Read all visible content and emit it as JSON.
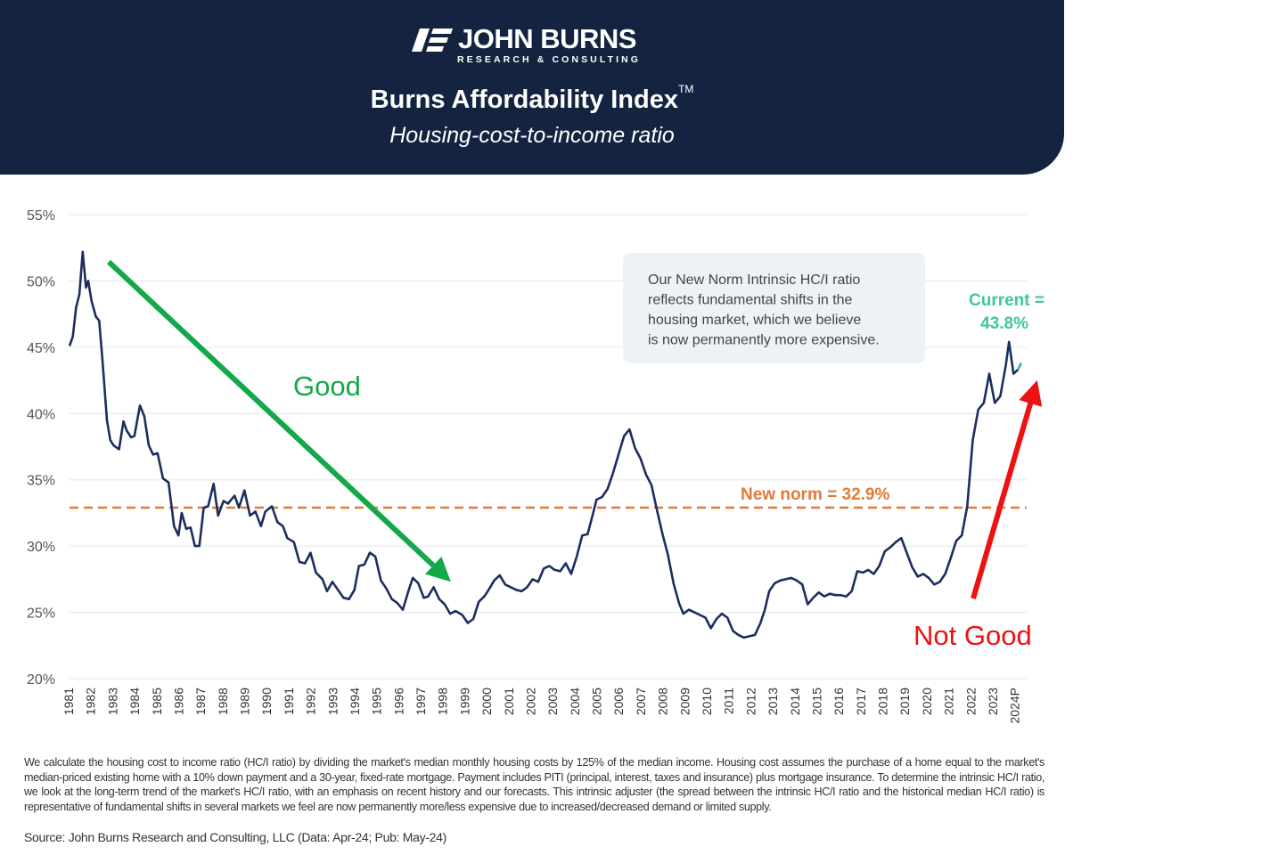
{
  "header": {
    "brand_name": "JOHN BURNS",
    "brand_sub": "RESEARCH & CONSULTING",
    "title": "Burns Affordability Index",
    "title_mark": "TM",
    "subtitle": "Housing-cost-to-income ratio"
  },
  "colors": {
    "header_bg": "#14233f",
    "series_line": "#1c2e5e",
    "new_norm": "#e07b39",
    "current_label": "#3fc79a",
    "good_arrow": "#13a84a",
    "not_good_arrow": "#ee1111",
    "callout_bg": "#eef1f6"
  },
  "chart_data": {
    "type": "line",
    "title": "Burns Affordability Index",
    "subtitle": "Housing-cost-to-income ratio",
    "ylim": [
      20,
      55
    ],
    "xlim": [
      1981,
      2024.5
    ],
    "y_ticks": [
      "20%",
      "25%",
      "30%",
      "35%",
      "40%",
      "45%",
      "50%",
      "55%"
    ],
    "x_ticks": [
      "1981",
      "1982",
      "1983",
      "1984",
      "1985",
      "1986",
      "1987",
      "1988",
      "1989",
      "1990",
      "1991",
      "1992",
      "1993",
      "1994",
      "1995",
      "1996",
      "1997",
      "1998",
      "1999",
      "2000",
      "2001",
      "2002",
      "2003",
      "2004",
      "2005",
      "2006",
      "2007",
      "2008",
      "2009",
      "2010",
      "2011",
      "2012",
      "2013",
      "2014",
      "2015",
      "2016",
      "2017",
      "2018",
      "2019",
      "2020",
      "2021",
      "2022",
      "2023",
      "2024P"
    ],
    "grid": true,
    "series": [
      {
        "values": [
          [
            1981.0,
            45.1
          ],
          [
            1981.15,
            45.8
          ],
          [
            1981.3,
            48.0
          ],
          [
            1981.45,
            49.0
          ],
          [
            1981.6,
            52.2
          ],
          [
            1981.75,
            49.5
          ],
          [
            1981.85,
            50.0
          ],
          [
            1982.0,
            48.5
          ],
          [
            1982.2,
            47.3
          ],
          [
            1982.35,
            47.0
          ],
          [
            1982.5,
            44.0
          ],
          [
            1982.7,
            39.5
          ],
          [
            1982.85,
            38.0
          ],
          [
            1983.0,
            37.6
          ],
          [
            1983.25,
            37.3
          ],
          [
            1983.45,
            39.4
          ],
          [
            1983.6,
            38.7
          ],
          [
            1983.8,
            38.2
          ],
          [
            1983.95,
            38.3
          ],
          [
            1984.2,
            40.6
          ],
          [
            1984.4,
            39.8
          ],
          [
            1984.6,
            37.6
          ],
          [
            1984.8,
            36.9
          ],
          [
            1985.0,
            37.0
          ],
          [
            1985.25,
            35.1
          ],
          [
            1985.5,
            34.8
          ],
          [
            1985.75,
            31.5
          ],
          [
            1985.95,
            30.8
          ],
          [
            1986.1,
            32.5
          ],
          [
            1986.3,
            31.3
          ],
          [
            1986.5,
            31.4
          ],
          [
            1986.7,
            30.0
          ],
          [
            1986.9,
            30.0
          ],
          [
            1987.1,
            32.9
          ],
          [
            1987.3,
            33.0
          ],
          [
            1987.55,
            34.7
          ],
          [
            1987.75,
            32.3
          ],
          [
            1988.0,
            33.4
          ],
          [
            1988.2,
            33.2
          ],
          [
            1988.5,
            33.8
          ],
          [
            1988.7,
            32.9
          ],
          [
            1988.95,
            34.2
          ],
          [
            1989.2,
            32.3
          ],
          [
            1989.45,
            32.6
          ],
          [
            1989.7,
            31.5
          ],
          [
            1989.9,
            32.6
          ],
          [
            1990.2,
            33.0
          ],
          [
            1990.45,
            31.8
          ],
          [
            1990.7,
            31.5
          ],
          [
            1990.9,
            30.6
          ],
          [
            1991.2,
            30.3
          ],
          [
            1991.45,
            28.8
          ],
          [
            1991.7,
            28.7
          ],
          [
            1991.95,
            29.5
          ],
          [
            1992.2,
            28.0
          ],
          [
            1992.5,
            27.5
          ],
          [
            1992.7,
            26.6
          ],
          [
            1992.95,
            27.3
          ],
          [
            1993.2,
            26.7
          ],
          [
            1993.45,
            26.1
          ],
          [
            1993.7,
            26.0
          ],
          [
            1993.95,
            26.7
          ],
          [
            1994.15,
            28.5
          ],
          [
            1994.4,
            28.6
          ],
          [
            1994.65,
            29.5
          ],
          [
            1994.9,
            29.2
          ],
          [
            1995.15,
            27.4
          ],
          [
            1995.4,
            26.8
          ],
          [
            1995.65,
            26.0
          ],
          [
            1995.9,
            25.7
          ],
          [
            1996.15,
            25.2
          ],
          [
            1996.4,
            26.6
          ],
          [
            1996.6,
            27.6
          ],
          [
            1996.85,
            27.2
          ],
          [
            1997.1,
            26.1
          ],
          [
            1997.3,
            26.2
          ],
          [
            1997.55,
            26.9
          ],
          [
            1997.8,
            26.0
          ],
          [
            1998.05,
            25.6
          ],
          [
            1998.3,
            24.9
          ],
          [
            1998.55,
            25.1
          ],
          [
            1998.85,
            24.8
          ],
          [
            1999.1,
            24.2
          ],
          [
            1999.35,
            24.5
          ],
          [
            1999.6,
            25.8
          ],
          [
            1999.85,
            26.2
          ],
          [
            2000.05,
            26.7
          ],
          [
            2000.3,
            27.4
          ],
          [
            2000.55,
            27.8
          ],
          [
            2000.8,
            27.1
          ],
          [
            2001.05,
            26.9
          ],
          [
            2001.3,
            26.7
          ],
          [
            2001.55,
            26.6
          ],
          [
            2001.8,
            26.9
          ],
          [
            2002.05,
            27.5
          ],
          [
            2002.3,
            27.3
          ],
          [
            2002.55,
            28.3
          ],
          [
            2002.8,
            28.5
          ],
          [
            2003.05,
            28.2
          ],
          [
            2003.3,
            28.1
          ],
          [
            2003.55,
            28.7
          ],
          [
            2003.8,
            27.9
          ],
          [
            2004.05,
            29.2
          ],
          [
            2004.3,
            30.8
          ],
          [
            2004.55,
            30.9
          ],
          [
            2004.8,
            32.5
          ],
          [
            2004.95,
            33.5
          ],
          [
            2005.2,
            33.7
          ],
          [
            2005.45,
            34.3
          ],
          [
            2005.7,
            35.5
          ],
          [
            2005.95,
            36.9
          ],
          [
            2006.2,
            38.3
          ],
          [
            2006.45,
            38.8
          ],
          [
            2006.7,
            37.4
          ],
          [
            2006.95,
            36.6
          ],
          [
            2007.2,
            35.4
          ],
          [
            2007.45,
            34.6
          ],
          [
            2007.7,
            32.7
          ],
          [
            2007.95,
            30.9
          ],
          [
            2008.2,
            29.3
          ],
          [
            2008.45,
            27.2
          ],
          [
            2008.7,
            25.7
          ],
          [
            2008.9,
            24.9
          ],
          [
            2009.15,
            25.2
          ],
          [
            2009.4,
            25.0
          ],
          [
            2009.65,
            24.8
          ],
          [
            2009.9,
            24.6
          ],
          [
            2010.15,
            23.8
          ],
          [
            2010.4,
            24.5
          ],
          [
            2010.65,
            24.9
          ],
          [
            2010.9,
            24.6
          ],
          [
            2011.15,
            23.6
          ],
          [
            2011.4,
            23.3
          ],
          [
            2011.65,
            23.1
          ],
          [
            2011.9,
            23.2
          ],
          [
            2012.15,
            23.3
          ],
          [
            2012.4,
            24.2
          ],
          [
            2012.6,
            25.2
          ],
          [
            2012.8,
            26.6
          ],
          [
            2013.05,
            27.2
          ],
          [
            2013.3,
            27.4
          ],
          [
            2013.55,
            27.5
          ],
          [
            2013.8,
            27.6
          ],
          [
            2014.05,
            27.4
          ],
          [
            2014.3,
            27.1
          ],
          [
            2014.55,
            25.6
          ],
          [
            2014.8,
            26.1
          ],
          [
            2015.05,
            26.5
          ],
          [
            2015.3,
            26.2
          ],
          [
            2015.55,
            26.4
          ],
          [
            2015.8,
            26.3
          ],
          [
            2016.05,
            26.3
          ],
          [
            2016.3,
            26.2
          ],
          [
            2016.55,
            26.6
          ],
          [
            2016.8,
            28.1
          ],
          [
            2017.05,
            28.0
          ],
          [
            2017.3,
            28.2
          ],
          [
            2017.55,
            27.9
          ],
          [
            2017.8,
            28.5
          ],
          [
            2018.05,
            29.6
          ],
          [
            2018.3,
            29.9
          ],
          [
            2018.55,
            30.3
          ],
          [
            2018.8,
            30.6
          ],
          [
            2019.05,
            29.5
          ],
          [
            2019.3,
            28.4
          ],
          [
            2019.55,
            27.7
          ],
          [
            2019.8,
            27.9
          ],
          [
            2020.05,
            27.6
          ],
          [
            2020.3,
            27.1
          ],
          [
            2020.55,
            27.3
          ],
          [
            2020.8,
            27.9
          ],
          [
            2021.05,
            29.1
          ],
          [
            2021.3,
            30.4
          ],
          [
            2021.55,
            30.8
          ],
          [
            2021.8,
            33.0
          ],
          [
            2022.05,
            38.0
          ],
          [
            2022.3,
            40.3
          ],
          [
            2022.55,
            40.8
          ],
          [
            2022.8,
            43.0
          ],
          [
            2023.05,
            40.8
          ],
          [
            2023.3,
            41.3
          ],
          [
            2023.55,
            43.6
          ],
          [
            2023.7,
            45.4
          ],
          [
            2023.9,
            43.0
          ],
          [
            2024.1,
            43.3
          ],
          [
            2024.25,
            43.8
          ]
        ]
      }
    ],
    "new_norm": {
      "value": 32.9,
      "label": "New norm = 32.9%"
    },
    "current_label": "Current = 43.8%",
    "callout": "Our New Norm Intrinsic HC/I ratio reflects fundamental shifts in the housing market, which we believe is now permanently more expensive.",
    "annotations": {
      "good": "Good",
      "not_good": "Not Good"
    }
  },
  "footnote": "We calculate the housing cost to income ratio (HC/I ratio) by dividing the market's median monthly housing costs by 125% of the median income. Housing cost assumes the purchase of a home equal to the market's median-priced existing home with a 10% down payment and a 30-year, fixed-rate mortgage. Payment includes PITI (principal, interest, taxes and insurance) plus mortgage insurance. To determine the intrinsic HC/I ratio, we look at the long-term trend of the market's HC/I ratio, with an emphasis on recent history and our forecasts. This intrinsic adjuster (the spread between the intrinsic HC/I ratio and the historical median HC/I ratio) is representative of fundamental shifts in several markets we feel are now permanently more/less expensive due to increased/decreased demand or limited supply.",
  "source": "Source: John Burns Research and Consulting, LLC (Data: Apr-24; Pub: May-24)"
}
